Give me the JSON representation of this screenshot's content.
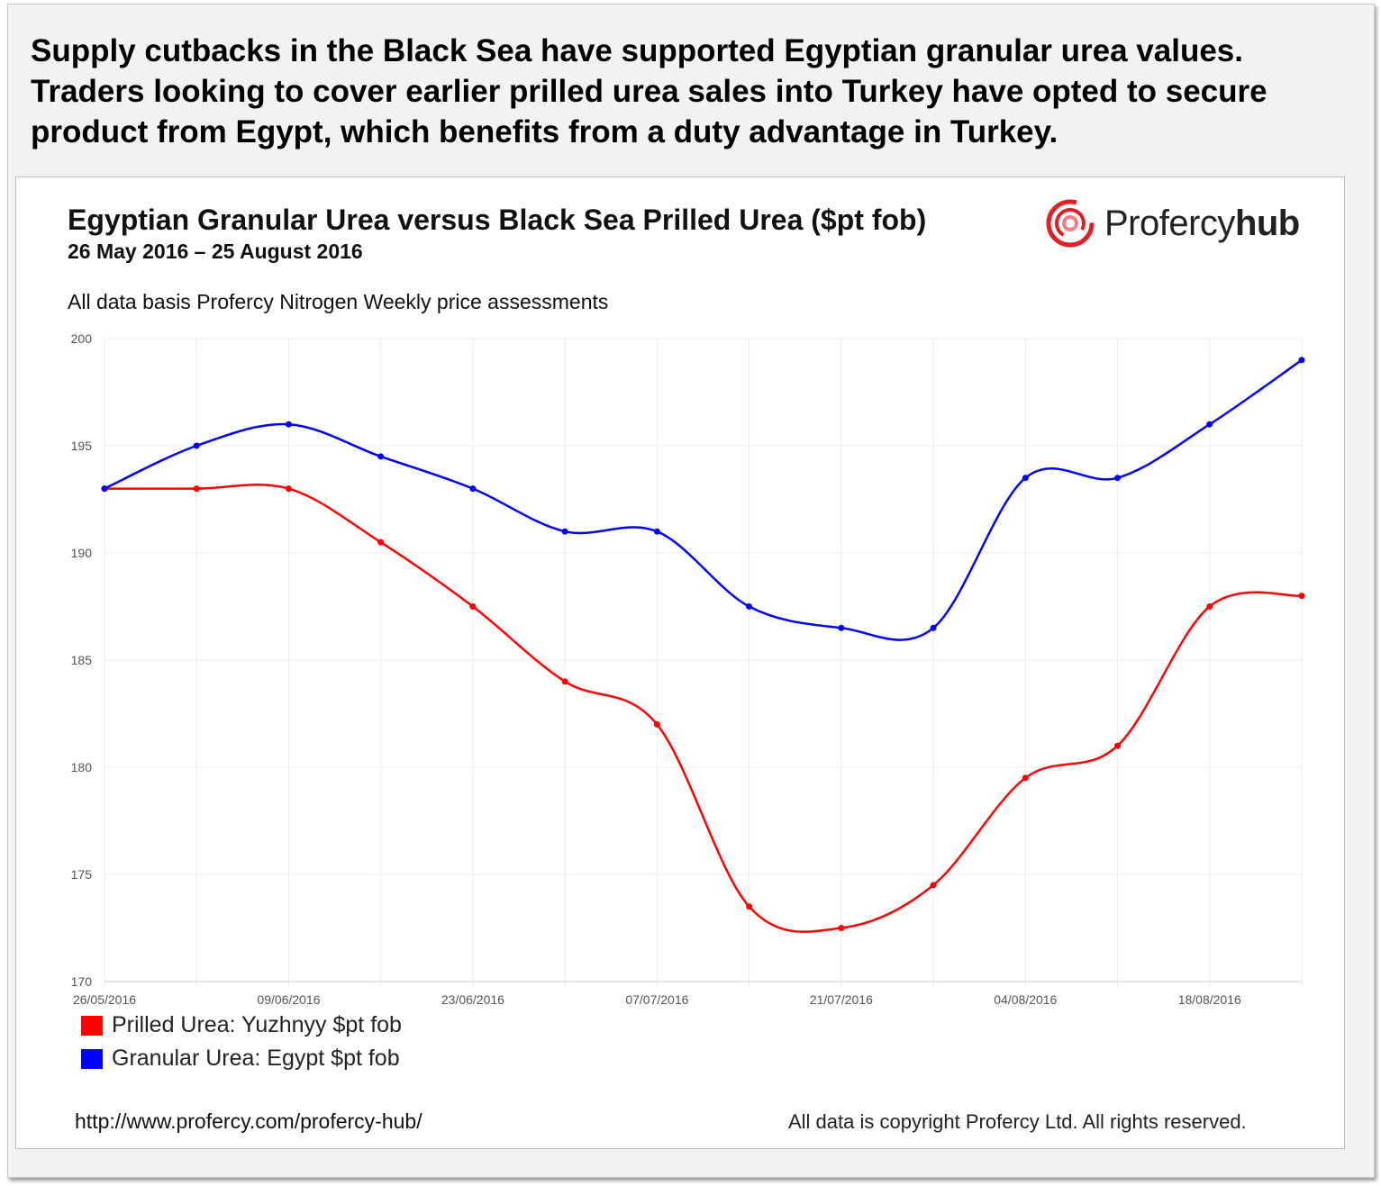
{
  "headline": "Supply cutbacks in the Black Sea have supported Egyptian granular urea values. Traders looking to cover earlier prilled urea sales into Turkey have opted to secure product from Egypt, which benefits from a duty advantage in Turkey.",
  "logo": {
    "brand": "Profercy",
    "brand_bold": "hub",
    "color": "#e31e24"
  },
  "footer": {
    "url": "http://www.profercy.com/profercy-hub/",
    "copyright": "All data is copyright Profercy Ltd. All rights reserved."
  },
  "chart_data": {
    "type": "line",
    "title": "Egyptian Granular Urea versus Black Sea Prilled Urea ($pt fob)",
    "subtitle": "26 May 2016 – 25 August 2016",
    "note": "All data basis Profercy Nitrogen Weekly price assessments",
    "x": [
      "26/05/2016",
      "02/06/2016",
      "09/06/2016",
      "16/06/2016",
      "23/06/2016",
      "30/06/2016",
      "07/07/2016",
      "14/07/2016",
      "21/07/2016",
      "28/07/2016",
      "04/08/2016",
      "11/08/2016",
      "18/08/2016",
      "25/08/2016"
    ],
    "x_tick_labels": [
      "26/05/2016",
      "09/06/2016",
      "23/06/2016",
      "07/07/2016",
      "21/07/2016",
      "04/08/2016",
      "18/08/2016"
    ],
    "ylim": [
      170,
      200
    ],
    "y_ticks": [
      170,
      175,
      180,
      185,
      190,
      195,
      200
    ],
    "grid": true,
    "legend_placement": "bottom-left",
    "series": [
      {
        "name": "Prilled Urea: Yuzhnyy $pt fob",
        "color": "#ff0000",
        "values": [
          193,
          193,
          193,
          190.5,
          187.5,
          184,
          182,
          173.5,
          172.5,
          174.5,
          179.5,
          181,
          187.5,
          188
        ]
      },
      {
        "name": "Granular Urea: Egypt $pt fob",
        "color": "#0000ff",
        "values": [
          193,
          195,
          196,
          194.5,
          193,
          191,
          191,
          187.5,
          186.5,
          186.5,
          193.5,
          193.5,
          196,
          199
        ]
      }
    ]
  }
}
